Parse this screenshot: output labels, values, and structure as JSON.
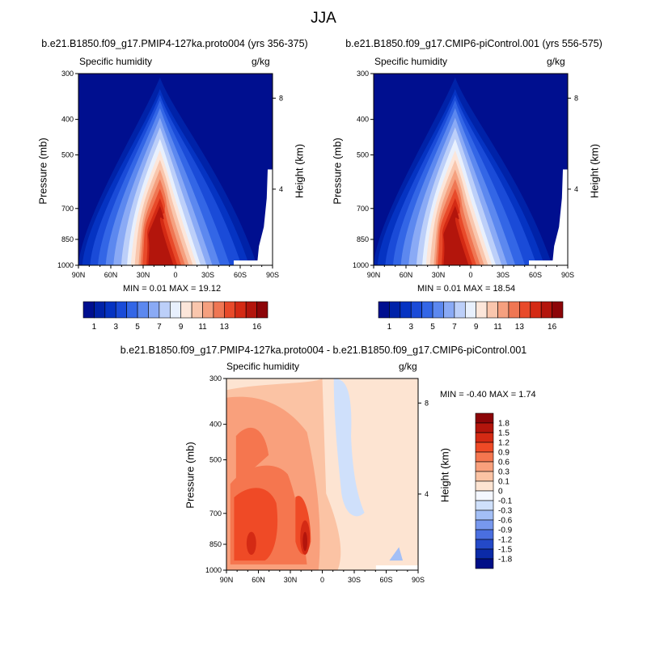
{
  "page": {
    "title": "JJA"
  },
  "panels": [
    {
      "title": "b.e21.B1850.f09_g17.PMIP4-127ka.proto004 (yrs 356-375)",
      "left_label": "Specific humidity",
      "right_label": "g/kg",
      "ylabel": "Pressure (mb)",
      "y2label": "Height (km)",
      "stats": "MIN =  0.01  MAX =  19.12"
    },
    {
      "title": "b.e21.B1850.f09_g17.CMIP6-piControl.001 (yrs 556-575)",
      "left_label": "Specific humidity",
      "right_label": "g/kg",
      "ylabel": "Pressure (mb)",
      "y2label": "Height (km)",
      "stats": "MIN =  0.01  MAX =  18.54"
    },
    {
      "title": "b.e21.B1850.f09_g17.PMIP4-127ka.proto004 - b.e21.B1850.f09_g17.CMIP6-piControl.001",
      "left_label": "Specific humidity",
      "right_label": "g/kg",
      "ylabel": "Pressure (mb)",
      "y2label": "Height (km)",
      "stats": "MIN = -0.40  MAX =   1.74"
    }
  ],
  "chart_data": [
    {
      "type": "contour",
      "panel": "PMIP4-127ka",
      "variable": "Specific humidity",
      "units": "g/kg",
      "x_ticks": [
        "90N",
        "60N",
        "30N",
        "0",
        "30S",
        "60S",
        "90S"
      ],
      "y_ticks": [
        "300",
        "400",
        "500",
        "700",
        "850",
        "1000"
      ],
      "y_tick_values": [
        300,
        400,
        500,
        700,
        850,
        1000
      ],
      "y2_ticks": [
        "8",
        "4"
      ],
      "y2_tick_values": [
        8,
        4
      ],
      "min": 0.01,
      "max": 19.12,
      "approx_peak_latitude": 10,
      "approx_peak_pressure": 950
    },
    {
      "type": "contour",
      "panel": "CMIP6-piControl",
      "variable": "Specific humidity",
      "units": "g/kg",
      "x_ticks": [
        "90N",
        "60N",
        "30N",
        "0",
        "30S",
        "60S",
        "90S"
      ],
      "y_ticks": [
        "300",
        "400",
        "500",
        "700",
        "850",
        "1000"
      ],
      "y_tick_values": [
        300,
        400,
        500,
        700,
        850,
        1000
      ],
      "y2_ticks": [
        "8",
        "4"
      ],
      "y2_tick_values": [
        8,
        4
      ],
      "min": 0.01,
      "max": 18.54,
      "approx_peak_latitude": 10,
      "approx_peak_pressure": 950
    },
    {
      "type": "contour",
      "panel": "difference",
      "variable": "Specific humidity",
      "units": "g/kg",
      "x_ticks": [
        "90N",
        "60N",
        "30N",
        "0",
        "30S",
        "60S",
        "90S"
      ],
      "y_ticks": [
        "300",
        "400",
        "500",
        "700",
        "850",
        "1000"
      ],
      "y_tick_values": [
        300,
        400,
        500,
        700,
        850,
        1000
      ],
      "y2_ticks": [
        "8",
        "4"
      ],
      "y2_tick_values": [
        8,
        4
      ],
      "min": -0.4,
      "max": 1.74
    }
  ],
  "colorbars": {
    "absolute": {
      "labels": [
        "1",
        "3",
        "5",
        "7",
        "9",
        "11",
        "13",
        "16"
      ],
      "colors": [
        "#000f8f",
        "#0022a8",
        "#0533c2",
        "#1a4bd8",
        "#3366e6",
        "#5c88ef",
        "#8aaaf5",
        "#bccff9",
        "#e8f0fd",
        "#fce6da",
        "#f9c6ad",
        "#f5a07f",
        "#ef7653",
        "#e84a2a",
        "#d42a14",
        "#b3150c",
        "#8c0508"
      ]
    },
    "difference": {
      "labels": [
        "1.8",
        "1.5",
        "1.2",
        "0.9",
        "0.6",
        "0.3",
        "0.1",
        "0",
        "-0.1",
        "-0.3",
        "-0.6",
        "-0.9",
        "-1.2",
        "-1.5",
        "-1.8"
      ],
      "colors": [
        "#8c0508",
        "#b3150c",
        "#d42a14",
        "#ef4a26",
        "#f5764f",
        "#f9a07c",
        "#fbc3a4",
        "#fde4d2",
        "#f4f7ff",
        "#cfe0fb",
        "#a3bff6",
        "#7798ee",
        "#4a6fe0",
        "#2449c8",
        "#0b2aa8",
        "#000e87"
      ]
    }
  }
}
